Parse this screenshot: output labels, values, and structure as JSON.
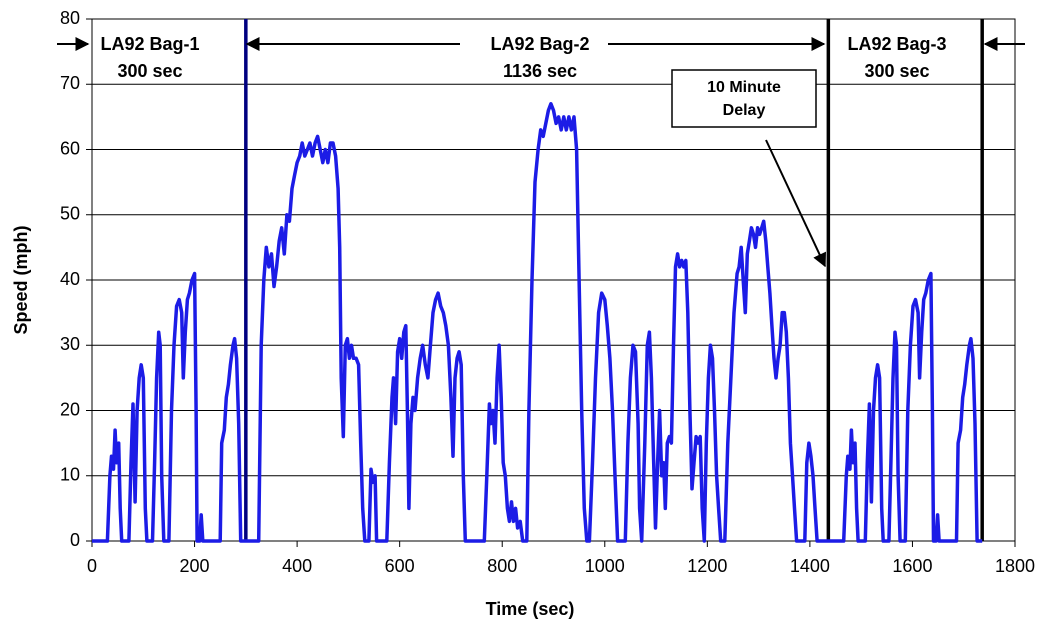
{
  "chart_data": {
    "type": "line",
    "x_label": "Time (sec)",
    "y_label": "Speed (mph)",
    "color": "#1c1ce6",
    "xlim": [
      0,
      1800
    ],
    "xticks": [
      0,
      200,
      400,
      600,
      800,
      1000,
      1200,
      1400,
      1600,
      1800
    ],
    "ylim": [
      0,
      80
    ],
    "yticks": [
      0,
      10,
      20,
      30,
      40,
      50,
      60,
      70,
      80
    ],
    "grid": true,
    "x": [
      0,
      30,
      35,
      38,
      42,
      45,
      48,
      52,
      55,
      58,
      72,
      76,
      80,
      84,
      88,
      92,
      96,
      100,
      104,
      107,
      118,
      122,
      126,
      130,
      133,
      136,
      140,
      150,
      155,
      160,
      165,
      170,
      175,
      178,
      182,
      186,
      190,
      195,
      200,
      203,
      205,
      210,
      213,
      216,
      250,
      253,
      258,
      262,
      266,
      270,
      275,
      278,
      282,
      286,
      290,
      300,
      310,
      325,
      330,
      335,
      340,
      345,
      350,
      355,
      360,
      365,
      370,
      375,
      380,
      385,
      390,
      395,
      400,
      405,
      410,
      415,
      420,
      425,
      430,
      435,
      440,
      445,
      450,
      455,
      460,
      465,
      470,
      475,
      480,
      483,
      486,
      490,
      494,
      498,
      502,
      506,
      510,
      515,
      520,
      524,
      528,
      532,
      540,
      544,
      548,
      552,
      555,
      575,
      580,
      585,
      588,
      592,
      596,
      600,
      604,
      608,
      612,
      615,
      618,
      622,
      626,
      630,
      635,
      640,
      645,
      650,
      655,
      660,
      665,
      670,
      675,
      680,
      685,
      690,
      695,
      700,
      704,
      708,
      712,
      716,
      720,
      724,
      728,
      765,
      770,
      775,
      778,
      782,
      786,
      790,
      794,
      798,
      802,
      806,
      810,
      814,
      818,
      822,
      826,
      830,
      835,
      840,
      848,
      852,
      858,
      864,
      870,
      875,
      880,
      885,
      890,
      895,
      900,
      905,
      910,
      915,
      920,
      925,
      930,
      935,
      940,
      945,
      950,
      955,
      960,
      965,
      970,
      976,
      982,
      988,
      994,
      1000,
      1005,
      1010,
      1015,
      1020,
      1025,
      1040,
      1045,
      1050,
      1055,
      1060,
      1065,
      1068,
      1072,
      1078,
      1083,
      1087,
      1091,
      1095,
      1099,
      1103,
      1107,
      1111,
      1115,
      1118,
      1122,
      1126,
      1130,
      1134,
      1138,
      1142,
      1146,
      1150,
      1154,
      1158,
      1162,
      1166,
      1170,
      1174,
      1178,
      1182,
      1186,
      1190,
      1194,
      1198,
      1202,
      1206,
      1210,
      1214,
      1218,
      1222,
      1226,
      1234,
      1240,
      1246,
      1252,
      1258,
      1262,
      1266,
      1270,
      1274,
      1278,
      1282,
      1286,
      1290,
      1294,
      1298,
      1302,
      1306,
      1310,
      1314,
      1318,
      1322,
      1326,
      1330,
      1334,
      1338,
      1342,
      1346,
      1350,
      1354,
      1358,
      1362,
      1366,
      1370,
      1374,
      1390,
      1394,
      1398,
      1402,
      1406,
      1410,
      1414,
      1436,
      1466,
      1471,
      1474,
      1478,
      1481,
      1484,
      1488,
      1491,
      1494,
      1508,
      1512,
      1516,
      1520,
      1524,
      1528,
      1532,
      1536,
      1540,
      1543,
      1554,
      1558,
      1562,
      1566,
      1569,
      1572,
      1576,
      1586,
      1591,
      1596,
      1601,
      1606,
      1611,
      1614,
      1618,
      1622,
      1626,
      1631,
      1636,
      1639,
      1641,
      1646,
      1649,
      1652,
      1686,
      1689,
      1694,
      1698,
      1702,
      1706,
      1711,
      1714,
      1718,
      1722,
      1726,
      1736
    ],
    "values": [
      0,
      0,
      10,
      13,
      11,
      17,
      12,
      15,
      5,
      0,
      0,
      12,
      21,
      6,
      20,
      25,
      27,
      25,
      5,
      0,
      0,
      12,
      25,
      32,
      30,
      10,
      0,
      0,
      20,
      30,
      36,
      37,
      35,
      25,
      32,
      37,
      38,
      40,
      41,
      20,
      0,
      0,
      4,
      0,
      0,
      15,
      17,
      22,
      24,
      27,
      30,
      31,
      28,
      18,
      0,
      0,
      0,
      0,
      30,
      40,
      45,
      42,
      44,
      39,
      42,
      46,
      48,
      44,
      50,
      49,
      54,
      56,
      58,
      59,
      61,
      59,
      60,
      61,
      59,
      61,
      62,
      60,
      58,
      60,
      58,
      61,
      61,
      59,
      54,
      45,
      25,
      16,
      30,
      31,
      28,
      30,
      28,
      28,
      27,
      15,
      5,
      0,
      0,
      11,
      9,
      10,
      0,
      0,
      12,
      22,
      25,
      18,
      29,
      31,
      28,
      32,
      33,
      20,
      5,
      18,
      22,
      20,
      25,
      28,
      30,
      27,
      25,
      30,
      35,
      37,
      38,
      36,
      35,
      33,
      30,
      22,
      13,
      25,
      28,
      29,
      27,
      10,
      0,
      0,
      10,
      21,
      18,
      20,
      15,
      25,
      30,
      22,
      12,
      10,
      5,
      3,
      6,
      3,
      5,
      2,
      3,
      0,
      0,
      20,
      40,
      55,
      60,
      63,
      62,
      64,
      66,
      67,
      66,
      64,
      65,
      63,
      65,
      63,
      65,
      63,
      65,
      60,
      40,
      20,
      5,
      0,
      0,
      12,
      25,
      35,
      38,
      37,
      33,
      28,
      20,
      10,
      0,
      0,
      15,
      25,
      30,
      29,
      18,
      5,
      0,
      15,
      30,
      32,
      25,
      13,
      2,
      12,
      20,
      10,
      12,
      5,
      15,
      16,
      15,
      30,
      42,
      44,
      42,
      43,
      42,
      43,
      35,
      20,
      8,
      12,
      16,
      15,
      16,
      5,
      0,
      15,
      25,
      30,
      28,
      20,
      10,
      5,
      0,
      0,
      15,
      25,
      35,
      41,
      42,
      45,
      40,
      35,
      44,
      46,
      48,
      47,
      45,
      48,
      47,
      48,
      49,
      46,
      42,
      38,
      33,
      28,
      25,
      28,
      30,
      35,
      35,
      32,
      25,
      15,
      10,
      5,
      0,
      0,
      12,
      15,
      13,
      10,
      5,
      0,
      0,
      0,
      10,
      13,
      11,
      17,
      12,
      15,
      5,
      0,
      0,
      12,
      21,
      6,
      20,
      25,
      27,
      25,
      5,
      0,
      0,
      12,
      25,
      32,
      30,
      10,
      0,
      0,
      20,
      30,
      36,
      37,
      35,
      25,
      32,
      37,
      38,
      40,
      41,
      20,
      0,
      0,
      4,
      0,
      0,
      15,
      17,
      22,
      24,
      27,
      30,
      31,
      28,
      18,
      0,
      0
    ],
    "reference_lines": [
      {
        "x": 300,
        "color": "#000080"
      },
      {
        "x": 1436,
        "color": "#000000"
      },
      {
        "x": 1736,
        "color": "#000000"
      }
    ],
    "annotations": [
      [
        "LA92 Bag-1",
        "300 sec"
      ],
      [
        "LA92 Bag-2",
        "1136 sec"
      ],
      [
        "LA92 Bag-3",
        "300 sec"
      ]
    ],
    "callout": [
      "10 Minute",
      "Delay"
    ]
  }
}
